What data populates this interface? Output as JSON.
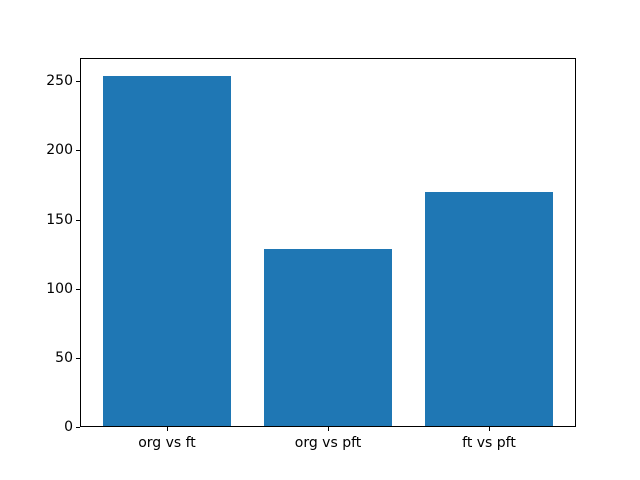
{
  "figure": {
    "background": "#ffffff"
  },
  "chart_data": {
    "type": "bar",
    "title": "",
    "xlabel": "",
    "ylabel": "",
    "categories": [
      "org vs ft",
      "org vs pft",
      "ft vs pft"
    ],
    "values": [
      254,
      129,
      170
    ],
    "yticks": [
      0,
      50,
      100,
      150,
      200,
      250
    ],
    "ylim": [
      0,
      266.7
    ],
    "xlim": [
      -0.54,
      2.54
    ],
    "bar_width": 0.8,
    "bar_color": "#1f77b4",
    "axis_color": "#000000",
    "tick_label_color": "#000000",
    "grid": false,
    "legend": false
  }
}
